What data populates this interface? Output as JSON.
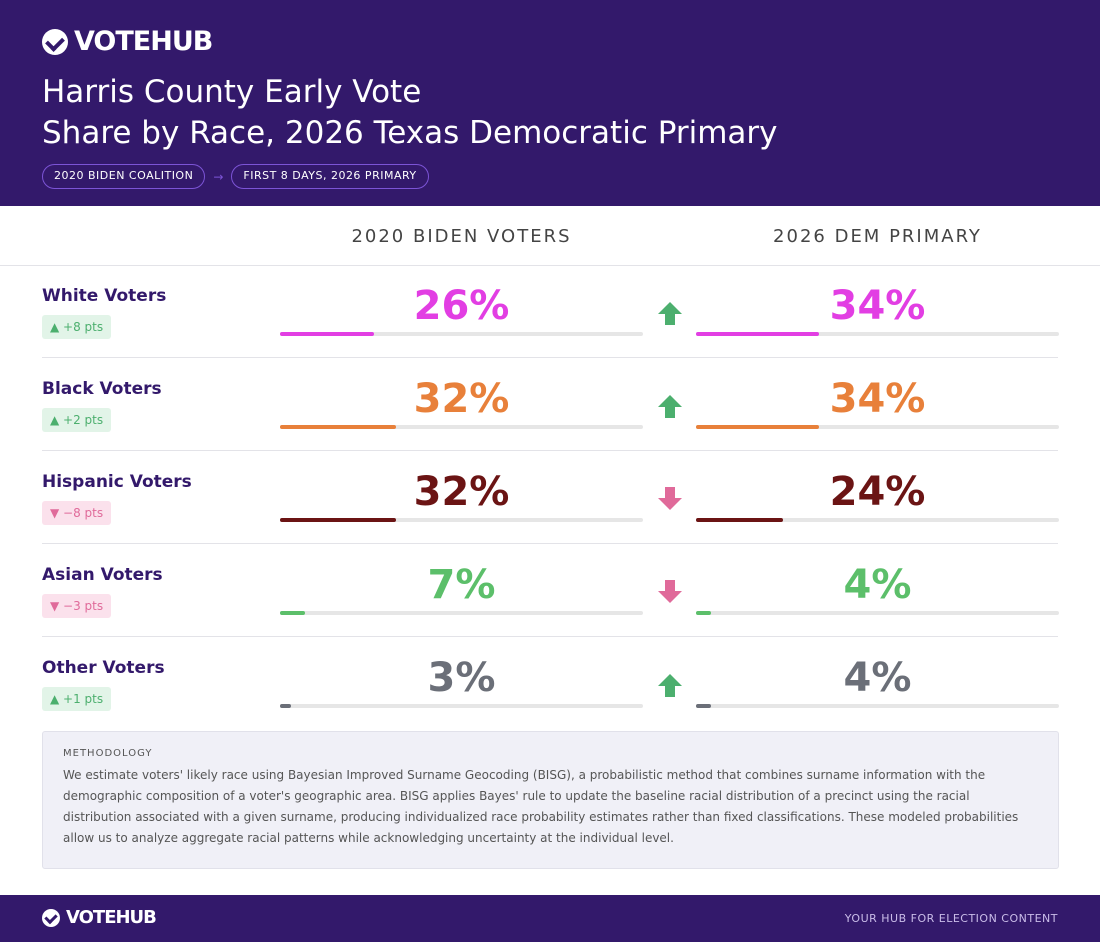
{
  "brand": "VOTEHUB",
  "title_line1": "Harris County Early Vote",
  "title_line2": "Share by Race, 2026 Texas Democratic Primary",
  "pill_from": "2020 BIDEN COALITION",
  "pill_arrow": "→",
  "pill_to": "FIRST 8 DAYS, 2026 PRIMARY",
  "col_left": "2020 BIDEN VOTERS",
  "col_right": "2026 DEM PRIMARY",
  "rows": [
    {
      "label": "White Voters",
      "change": "▲ +8 pts",
      "dir": "up",
      "v2020": "26%",
      "v2026": "34%",
      "p2020": 26,
      "p2026": 34,
      "color": "#e23ee3"
    },
    {
      "label": "Black Voters",
      "change": "▲ +2 pts",
      "dir": "up",
      "v2020": "32%",
      "v2026": "34%",
      "p2020": 32,
      "p2026": 34,
      "color": "#e8803a"
    },
    {
      "label": "Hispanic Voters",
      "change": "▼ −8 pts",
      "dir": "down",
      "v2020": "32%",
      "v2026": "24%",
      "p2020": 32,
      "p2026": 24,
      "color": "#6b1414"
    },
    {
      "label": "Asian Voters",
      "change": "▼ −3 pts",
      "dir": "down",
      "v2020": "7%",
      "v2026": "4%",
      "p2020": 7,
      "p2026": 4,
      "color": "#5cbf6a"
    },
    {
      "label": "Other Voters",
      "change": "▲ +1 pts",
      "dir": "up",
      "v2020": "3%",
      "v2026": "4%",
      "p2020": 3,
      "p2026": 4,
      "color": "#6b6f78"
    }
  ],
  "methodology_title": "METHODOLOGY",
  "methodology_text": "We estimate voters' likely race using Bayesian Improved Surname Geocoding (BISG), a probabilistic method that combines surname information with the demographic composition of a voter's geographic area. BISG applies Bayes' rule to update the baseline racial distribution of a precinct using the racial distribution associated with a given surname, producing individualized race probability estimates rather than fixed classifications. These modeled probabilities allow us to analyze aggregate racial patterns while acknowledging uncertainty at the individual level.",
  "tagline": "YOUR HUB FOR ELECTION CONTENT",
  "colors": {
    "brand": "#33196b",
    "up": "#4caf6e",
    "down": "#e06a9a"
  }
}
